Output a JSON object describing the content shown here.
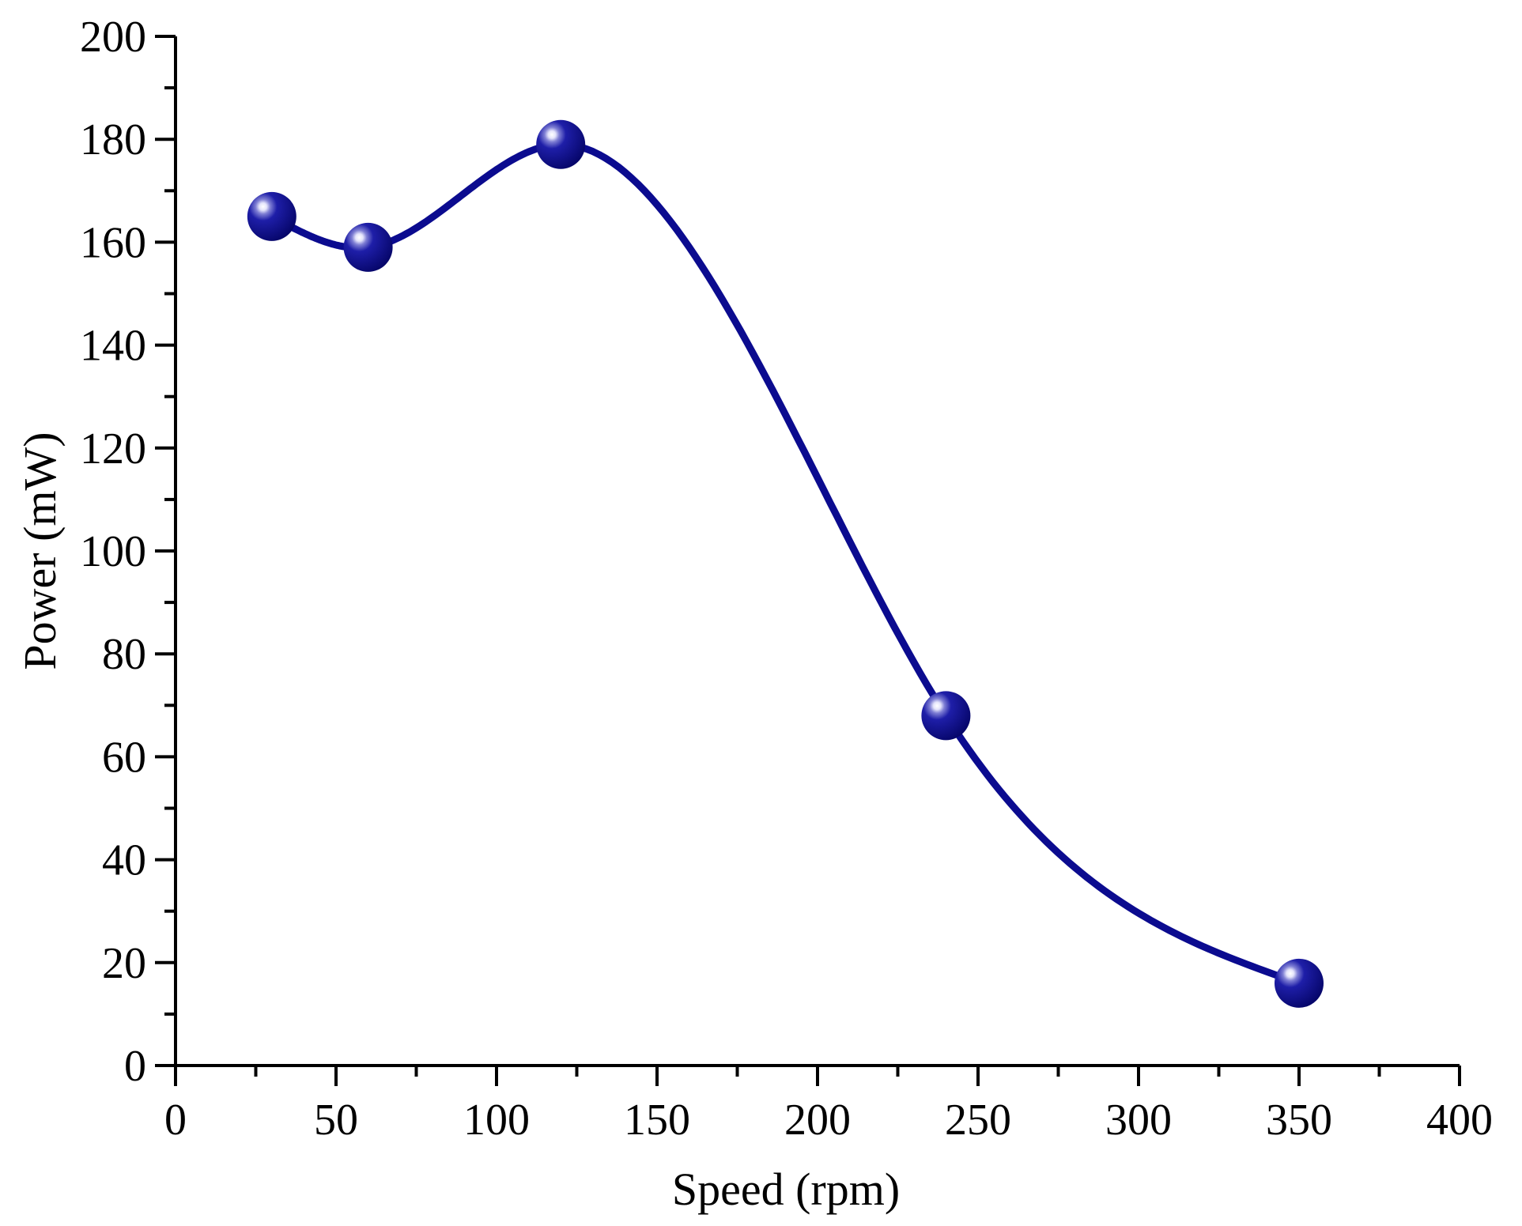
{
  "chart_data": {
    "type": "line",
    "title": "",
    "xlabel": "Speed (rpm)",
    "ylabel": "Power (mW)",
    "xlim": [
      0,
      400
    ],
    "ylim": [
      0,
      200
    ],
    "x_major_ticks": [
      0,
      50,
      100,
      150,
      200,
      250,
      300,
      350,
      400
    ],
    "x_tick_labels": [
      "0",
      "50",
      "100",
      "150",
      "200",
      "250",
      "300",
      "350",
      "400"
    ],
    "x_minor_ticks": [
      25,
      75,
      125,
      175,
      225,
      275,
      325,
      375
    ],
    "y_major_ticks": [
      0,
      20,
      40,
      60,
      80,
      100,
      120,
      140,
      160,
      180,
      200
    ],
    "y_tick_labels": [
      "0",
      "20",
      "40",
      "60",
      "80",
      "100",
      "120",
      "140",
      "160",
      "180",
      "200"
    ],
    "y_minor_ticks": [
      10,
      30,
      50,
      70,
      90,
      110,
      130,
      150,
      170,
      190
    ],
    "grid": false,
    "legend": "none",
    "series": [
      {
        "name": "Power",
        "color": "#0b0b8f",
        "marker": "sphere",
        "smooth": true,
        "x": [
          30,
          60,
          120,
          240,
          350
        ],
        "y": [
          165,
          159,
          179,
          68,
          16
        ]
      }
    ]
  }
}
